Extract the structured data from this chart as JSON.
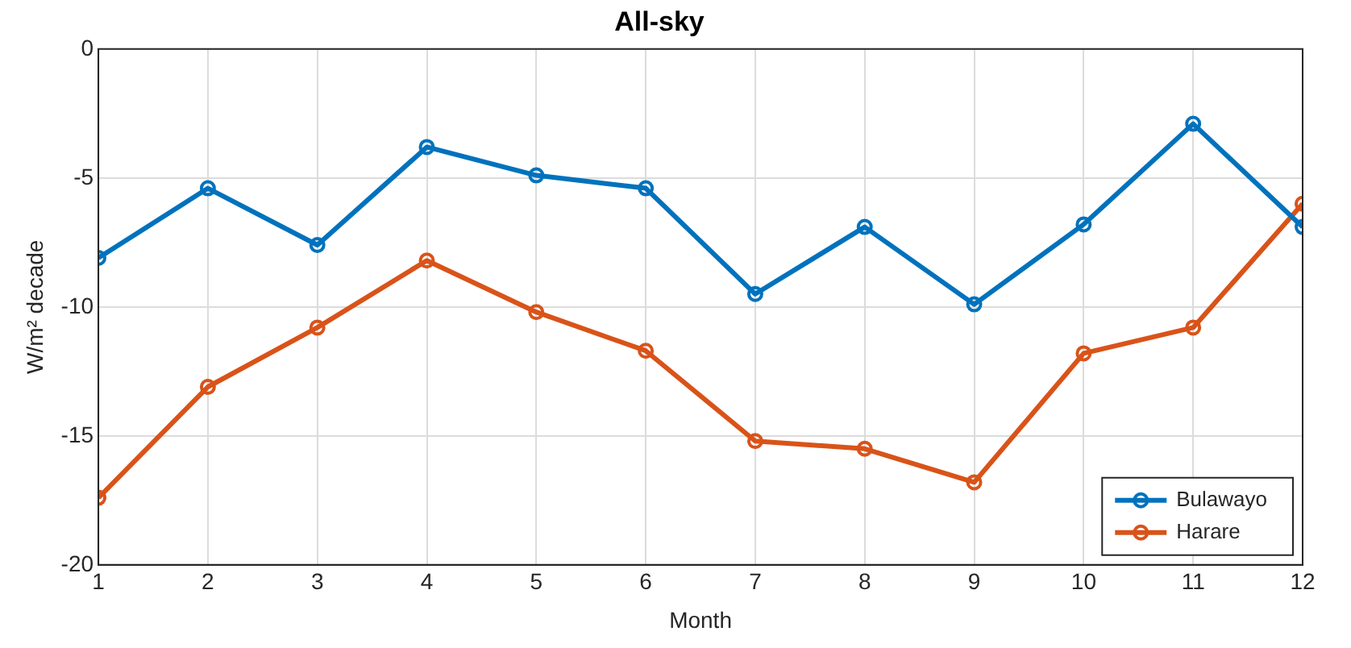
{
  "chart_data": {
    "type": "line",
    "title": "All-sky",
    "xlabel": "Month",
    "ylabel": "W/m² decade",
    "x": [
      1,
      2,
      3,
      4,
      5,
      6,
      7,
      8,
      9,
      10,
      11,
      12
    ],
    "series": [
      {
        "name": "Bulawayo",
        "color": "#0072bd",
        "values": [
          -8.1,
          -5.4,
          -7.6,
          -3.8,
          -4.9,
          -5.4,
          -9.5,
          -6.9,
          -9.9,
          -6.8,
          -2.9,
          -6.9
        ]
      },
      {
        "name": "Harare",
        "color": "#d95319",
        "values": [
          -17.4,
          -13.1,
          -10.8,
          -8.2,
          -10.2,
          -11.7,
          -15.2,
          -15.5,
          -16.8,
          -11.8,
          -10.8,
          -6.0
        ]
      }
    ],
    "xlim": [
      1,
      12
    ],
    "xticks": [
      1,
      2,
      3,
      4,
      5,
      6,
      7,
      8,
      9,
      10,
      11,
      12
    ],
    "ylim": [
      -20,
      0
    ],
    "yticks": [
      -20,
      -15,
      -10,
      -5,
      0
    ],
    "grid": true,
    "legend": "bottom right",
    "marker": "circle",
    "line_style": "solid"
  }
}
